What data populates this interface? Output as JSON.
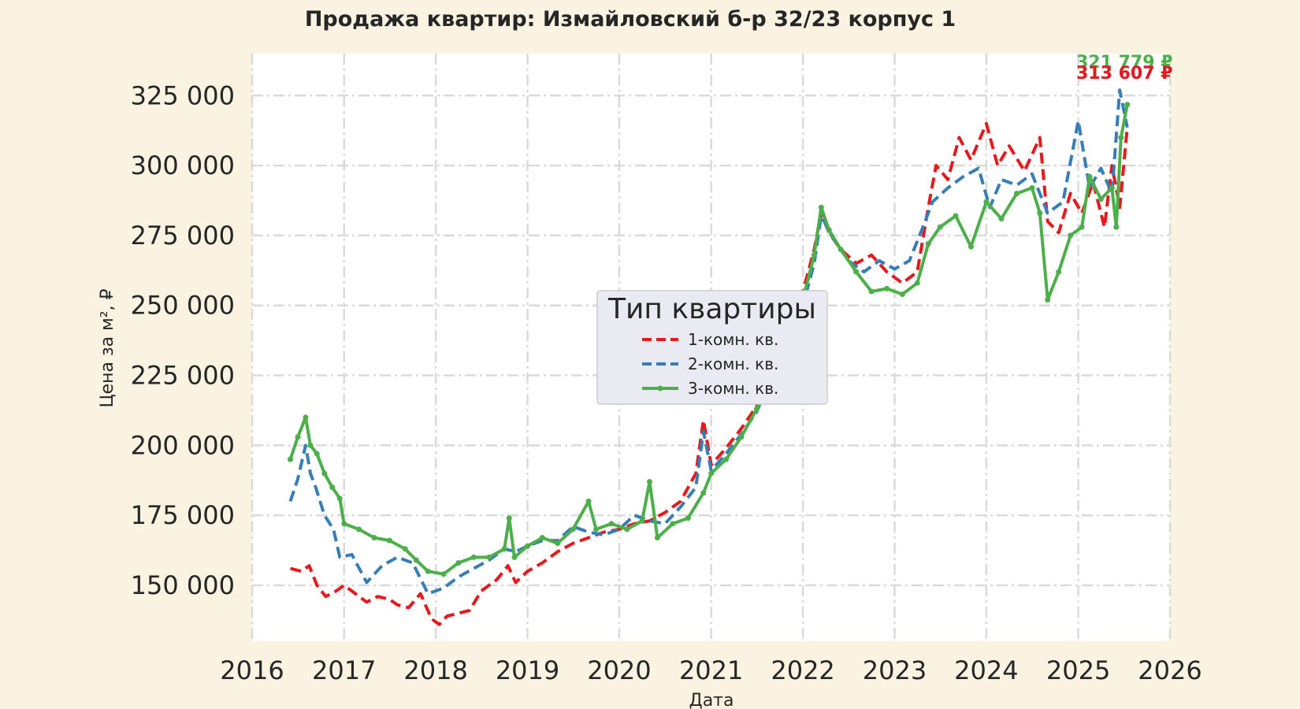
{
  "chart_data": {
    "type": "line",
    "title": "Продажа квартир: Измайловский б-р 32/23 корпус 1",
    "xlabel": "Дата",
    "ylabel": "Цена за м², ₽",
    "xlim": [
      "2016-01-01",
      "2026-01-01"
    ],
    "ylim": [
      130000,
      340000
    ],
    "x_ticks": [
      "2016",
      "2017",
      "2018",
      "2019",
      "2020",
      "2021",
      "2022",
      "2023",
      "2024",
      "2025",
      "2026"
    ],
    "y_ticks": [
      150000,
      175000,
      200000,
      225000,
      250000,
      275000,
      300000,
      325000
    ],
    "y_tick_labels": [
      "150 000",
      "175 000",
      "200 000",
      "225 000",
      "250 000",
      "275 000",
      "300 000",
      "325 000"
    ],
    "grid": true,
    "legend": {
      "title": "Тип квартиры",
      "placement": "center"
    },
    "colors": {
      "background": "#fbf3e1",
      "plot_background": "#ffffff",
      "grid": "#dcdcdc",
      "text": "#262626",
      "legend_background": "#eaeaf2"
    },
    "end_labels": [
      {
        "series": "3-комн. кв.",
        "text": "321 779 ₽",
        "color": "#4daf4a"
      },
      {
        "series": "2-комн. кв.",
        "text": "313 607 ₽",
        "color": "#377eb8"
      },
      {
        "series": "1-комн. кв.",
        "text": "313 607 ₽",
        "color": "#e41a1c"
      }
    ],
    "series": [
      {
        "name": "1-комн. кв.",
        "color": "#e41a1c",
        "style": "dashed",
        "points": [
          [
            "2016-06-01",
            156000
          ],
          [
            "2016-07-15",
            155000
          ],
          [
            "2016-08-15",
            157000
          ],
          [
            "2016-09-15",
            150000
          ],
          [
            "2016-10-20",
            146000
          ],
          [
            "2016-12-01",
            148000
          ],
          [
            "2017-01-01",
            150000
          ],
          [
            "2017-02-15",
            147000
          ],
          [
            "2017-04-01",
            144000
          ],
          [
            "2017-05-15",
            146000
          ],
          [
            "2017-07-01",
            145000
          ],
          [
            "2017-08-01",
            143000
          ],
          [
            "2017-09-15",
            142000
          ],
          [
            "2017-11-01",
            147000
          ],
          [
            "2017-12-15",
            138000
          ],
          [
            "2018-01-15",
            136000
          ],
          [
            "2018-02-15",
            139000
          ],
          [
            "2018-04-01",
            140000
          ],
          [
            "2018-05-15",
            141000
          ],
          [
            "2018-07-01",
            148000
          ],
          [
            "2018-09-01",
            152000
          ],
          [
            "2018-10-15",
            157000
          ],
          [
            "2018-11-15",
            151000
          ],
          [
            "2019-01-01",
            155000
          ],
          [
            "2019-03-01",
            158000
          ],
          [
            "2019-05-01",
            162000
          ],
          [
            "2019-07-01",
            165000
          ],
          [
            "2019-09-01",
            167000
          ],
          [
            "2019-11-01",
            169000
          ],
          [
            "2020-01-01",
            170000
          ],
          [
            "2020-03-01",
            172000
          ],
          [
            "2020-05-01",
            173000
          ],
          [
            "2020-07-01",
            176000
          ],
          [
            "2020-09-01",
            180000
          ],
          [
            "2020-11-01",
            190000
          ],
          [
            "2020-12-01",
            209000
          ],
          [
            "2021-01-01",
            193000
          ],
          [
            "2021-03-01",
            199000
          ],
          [
            "2021-05-01",
            206000
          ],
          [
            "2021-07-01",
            214000
          ],
          [
            "2021-09-01",
            224000
          ],
          [
            "2021-11-01",
            240000
          ],
          [
            "2022-01-01",
            255000
          ],
          [
            "2022-02-15",
            270000
          ],
          [
            "2022-03-15",
            283000
          ],
          [
            "2022-04-15",
            276000
          ],
          [
            "2022-06-01",
            270000
          ],
          [
            "2022-08-01",
            265000
          ],
          [
            "2022-10-01",
            268000
          ],
          [
            "2022-12-01",
            262000
          ],
          [
            "2023-02-01",
            258000
          ],
          [
            "2023-04-01",
            262000
          ],
          [
            "2023-05-15",
            285000
          ],
          [
            "2023-06-15",
            300000
          ],
          [
            "2023-08-01",
            295000
          ],
          [
            "2023-09-15",
            310000
          ],
          [
            "2023-11-01",
            302000
          ],
          [
            "2024-01-01",
            315000
          ],
          [
            "2024-02-15",
            300000
          ],
          [
            "2024-04-01",
            307000
          ],
          [
            "2024-06-01",
            298000
          ],
          [
            "2024-08-01",
            310000
          ],
          [
            "2024-09-01",
            280000
          ],
          [
            "2024-10-15",
            276000
          ],
          [
            "2024-12-01",
            290000
          ],
          [
            "2025-01-15",
            283000
          ],
          [
            "2025-03-01",
            294000
          ],
          [
            "2025-04-15",
            278000
          ],
          [
            "2025-05-15",
            300000
          ],
          [
            "2025-06-15",
            285000
          ],
          [
            "2025-07-15",
            313607
          ]
        ]
      },
      {
        "name": "2-комн. кв.",
        "color": "#377eb8",
        "style": "dashed",
        "points": [
          [
            "2016-06-01",
            180000
          ],
          [
            "2016-07-01",
            188000
          ],
          [
            "2016-08-01",
            200000
          ],
          [
            "2016-08-20",
            190000
          ],
          [
            "2016-09-10",
            185000
          ],
          [
            "2016-10-15",
            175000
          ],
          [
            "2016-11-20",
            170000
          ],
          [
            "2016-12-15",
            160000
          ],
          [
            "2017-02-01",
            161000
          ],
          [
            "2017-04-01",
            151000
          ],
          [
            "2017-06-01",
            157000
          ],
          [
            "2017-08-01",
            160000
          ],
          [
            "2017-10-01",
            158000
          ],
          [
            "2017-12-01",
            147000
          ],
          [
            "2018-02-01",
            149000
          ],
          [
            "2018-04-01",
            153000
          ],
          [
            "2018-06-01",
            156000
          ],
          [
            "2018-08-01",
            159000
          ],
          [
            "2018-10-01",
            163000
          ],
          [
            "2018-11-15",
            162000
          ],
          [
            "2019-01-01",
            164000
          ],
          [
            "2019-03-01",
            166000
          ],
          [
            "2019-05-01",
            166000
          ],
          [
            "2019-07-01",
            171000
          ],
          [
            "2019-09-01",
            169000
          ],
          [
            "2019-11-01",
            168000
          ],
          [
            "2020-01-01",
            170000
          ],
          [
            "2020-03-01",
            175000
          ],
          [
            "2020-05-01",
            173000
          ],
          [
            "2020-07-01",
            172000
          ],
          [
            "2020-09-01",
            178000
          ],
          [
            "2020-11-01",
            185000
          ],
          [
            "2020-12-01",
            205000
          ],
          [
            "2021-01-01",
            191000
          ],
          [
            "2021-03-01",
            197000
          ],
          [
            "2021-05-01",
            204000
          ],
          [
            "2021-07-01",
            212000
          ],
          [
            "2021-09-01",
            225000
          ],
          [
            "2021-11-01",
            245000
          ],
          [
            "2022-01-01",
            250000
          ],
          [
            "2022-02-15",
            265000
          ],
          [
            "2022-03-15",
            282000
          ],
          [
            "2022-05-01",
            274000
          ],
          [
            "2022-07-01",
            266000
          ],
          [
            "2022-09-01",
            262000
          ],
          [
            "2022-11-01",
            266000
          ],
          [
            "2023-01-01",
            263000
          ],
          [
            "2023-03-01",
            266000
          ],
          [
            "2023-04-15",
            276000
          ],
          [
            "2023-06-01",
            287000
          ],
          [
            "2023-08-01",
            292000
          ],
          [
            "2023-10-01",
            296000
          ],
          [
            "2023-12-01",
            299000
          ],
          [
            "2024-01-15",
            285000
          ],
          [
            "2024-03-01",
            295000
          ],
          [
            "2024-05-01",
            293000
          ],
          [
            "2024-07-01",
            297000
          ],
          [
            "2024-09-01",
            283000
          ],
          [
            "2024-11-01",
            287000
          ],
          [
            "2025-01-01",
            316000
          ],
          [
            "2025-02-15",
            292000
          ],
          [
            "2025-04-01",
            299000
          ],
          [
            "2025-05-15",
            290000
          ],
          [
            "2025-06-15",
            327000
          ],
          [
            "2025-07-15",
            313607
          ]
        ]
      },
      {
        "name": "3-комн. кв.",
        "color": "#4daf4a",
        "style": "solid",
        "points": [
          [
            "2016-06-01",
            195000
          ],
          [
            "2016-07-01",
            203000
          ],
          [
            "2016-08-01",
            210000
          ],
          [
            "2016-08-20",
            200000
          ],
          [
            "2016-09-15",
            197000
          ],
          [
            "2016-10-15",
            190000
          ],
          [
            "2016-11-15",
            185000
          ],
          [
            "2016-12-15",
            181000
          ],
          [
            "2017-01-01",
            172000
          ],
          [
            "2017-03-01",
            170000
          ],
          [
            "2017-05-01",
            167000
          ],
          [
            "2017-07-01",
            166000
          ],
          [
            "2017-09-01",
            163000
          ],
          [
            "2017-10-15",
            159000
          ],
          [
            "2017-12-01",
            155000
          ],
          [
            "2018-02-01",
            154000
          ],
          [
            "2018-04-01",
            158000
          ],
          [
            "2018-06-01",
            160000
          ],
          [
            "2018-08-01",
            160000
          ],
          [
            "2018-10-01",
            163000
          ],
          [
            "2018-10-20",
            174000
          ],
          [
            "2018-11-10",
            160000
          ],
          [
            "2019-01-01",
            164000
          ],
          [
            "2019-03-01",
            167000
          ],
          [
            "2019-05-01",
            165000
          ],
          [
            "2019-07-01",
            170000
          ],
          [
            "2019-09-01",
            180000
          ],
          [
            "2019-10-01",
            170000
          ],
          [
            "2019-12-01",
            172000
          ],
          [
            "2020-02-01",
            170000
          ],
          [
            "2020-04-01",
            173000
          ],
          [
            "2020-05-01",
            187000
          ],
          [
            "2020-06-01",
            167000
          ],
          [
            "2020-08-01",
            172000
          ],
          [
            "2020-10-01",
            174000
          ],
          [
            "2020-12-01",
            183000
          ],
          [
            "2021-01-01",
            190000
          ],
          [
            "2021-03-01",
            195000
          ],
          [
            "2021-05-01",
            203000
          ],
          [
            "2021-07-01",
            213000
          ],
          [
            "2021-09-01",
            222000
          ],
          [
            "2021-11-01",
            240000
          ],
          [
            "2022-01-01",
            252000
          ],
          [
            "2022-02-15",
            268000
          ],
          [
            "2022-03-15",
            285000
          ],
          [
            "2022-04-15",
            277000
          ],
          [
            "2022-06-01",
            270000
          ],
          [
            "2022-08-01",
            262000
          ],
          [
            "2022-10-01",
            255000
          ],
          [
            "2022-12-01",
            256000
          ],
          [
            "2023-02-01",
            254000
          ],
          [
            "2023-04-01",
            258000
          ],
          [
            "2023-05-15",
            272000
          ],
          [
            "2023-07-01",
            278000
          ],
          [
            "2023-09-01",
            282000
          ],
          [
            "2023-11-01",
            271000
          ],
          [
            "2024-01-01",
            287000
          ],
          [
            "2024-03-01",
            281000
          ],
          [
            "2024-05-01",
            290000
          ],
          [
            "2024-07-01",
            292000
          ],
          [
            "2024-08-01",
            283000
          ],
          [
            "2024-09-01",
            252000
          ],
          [
            "2024-10-15",
            262000
          ],
          [
            "2024-12-01",
            275000
          ],
          [
            "2025-01-15",
            278000
          ],
          [
            "2025-02-15",
            296000
          ],
          [
            "2025-04-01",
            288000
          ],
          [
            "2025-05-15",
            292000
          ],
          [
            "2025-06-01",
            278000
          ],
          [
            "2025-06-20",
            310000
          ],
          [
            "2025-07-15",
            321779
          ]
        ]
      }
    ]
  }
}
